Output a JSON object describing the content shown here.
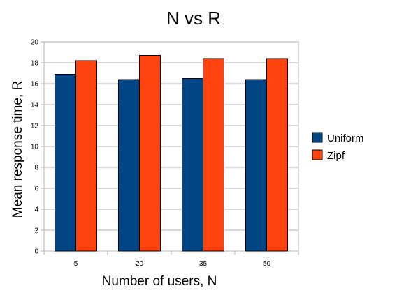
{
  "chart_data": {
    "type": "bar",
    "title": "N vs R",
    "xlabel": "Number of users, N",
    "ylabel": "Mean response time, R",
    "categories": [
      "5",
      "20",
      "35",
      "50"
    ],
    "series": [
      {
        "name": "Uniform",
        "color": "#004586",
        "values": [
          16.9,
          16.4,
          16.5,
          16.4
        ]
      },
      {
        "name": "Zipf",
        "color": "#ff420e",
        "values": [
          18.2,
          18.7,
          18.4,
          18.4
        ]
      }
    ],
    "ylim": [
      0,
      20
    ],
    "yticks": [
      0,
      2,
      4,
      6,
      8,
      10,
      12,
      14,
      16,
      18,
      20
    ],
    "grid": true,
    "legend": "right"
  }
}
